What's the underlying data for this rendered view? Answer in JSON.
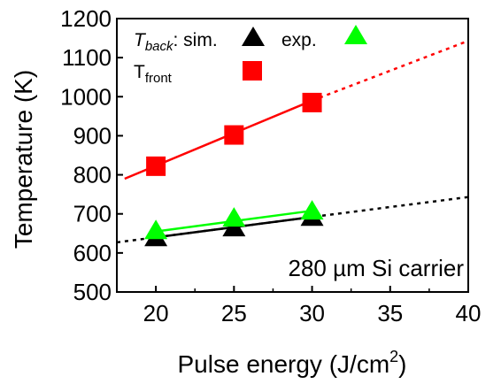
{
  "chart_data": {
    "type": "scatter",
    "xlabel": "Pulse energy (J/cm",
    "xlabel_sup": "2",
    "xlabel_end": ")",
    "ylabel": "Temperature (K)",
    "xlim": [
      17.5,
      40
    ],
    "ylim": [
      500,
      1200
    ],
    "x_ticks": [
      20,
      25,
      30,
      35,
      40
    ],
    "y_ticks": [
      500,
      600,
      700,
      800,
      900,
      1000,
      1100,
      1200
    ],
    "annotation": "280 µm Si carrier",
    "legend": {
      "back_T": "T",
      "back_sub": "back",
      "sim_label": ": sim.",
      "exp_label": "exp.",
      "front_T": "T",
      "front_sub": "front"
    },
    "series": [
      {
        "key": "front",
        "marker": "square",
        "color": "#ff0000",
        "x": [
          20,
          25,
          30
        ],
        "y": [
          822,
          902,
          985
        ],
        "fit": {
          "solid": [
            [
              18,
              790
            ],
            [
              30,
              990
            ]
          ],
          "dotted": [
            [
              30,
              990
            ],
            [
              40,
              1143
            ]
          ]
        }
      },
      {
        "key": "back-sim",
        "marker": "triangle",
        "color": "#000000",
        "x": [
          20,
          25,
          30
        ],
        "y": [
          640,
          665,
          692
        ],
        "fit": {
          "solid": [
            [
              20,
              640
            ],
            [
              30,
              692
            ]
          ],
          "dotted": [
            [
              17.5,
              627
            ],
            [
              20,
              640
            ],
            [
              30,
              692
            ],
            [
              40,
              743
            ]
          ]
        }
      },
      {
        "key": "back-exp",
        "marker": "triangle",
        "color": "#00ff00",
        "x": [
          20,
          25,
          30
        ],
        "y": [
          658,
          690,
          708
        ],
        "fit": {
          "solid": [
            [
              20,
              655
            ],
            [
              30,
              708
            ]
          ],
          "dotted": []
        }
      }
    ]
  },
  "colors": {
    "front": "#ff0000",
    "sim": "#000000",
    "exp": "#00ff00",
    "axis": "#000000"
  }
}
